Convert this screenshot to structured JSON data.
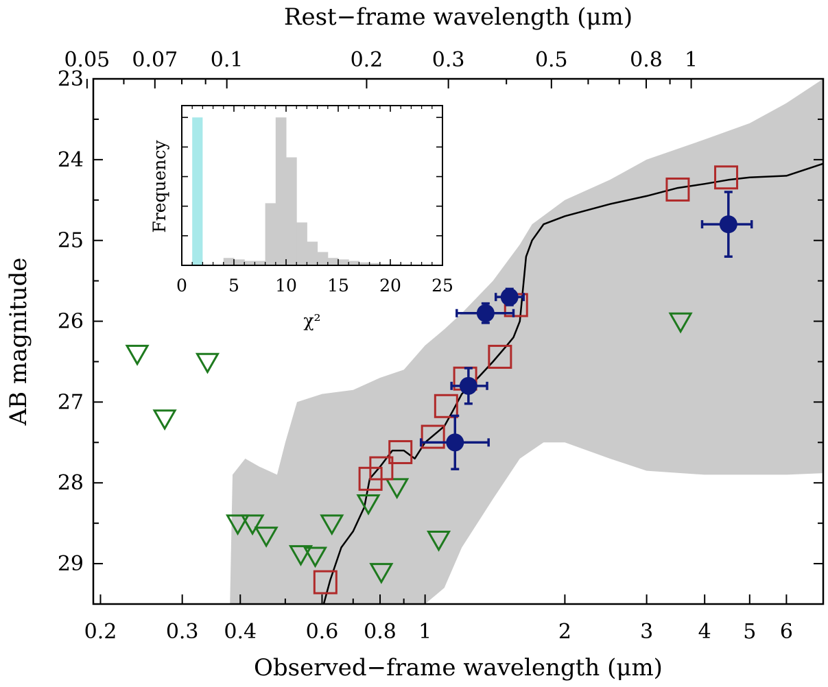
{
  "chart_data": {
    "type": "scatter",
    "x_axis": {
      "label": "Observed−frame wavelength (μm)",
      "scale": "log",
      "range": [
        0.193,
        7.2
      ],
      "ticks": [
        0.2,
        0.3,
        0.4,
        0.6,
        0.8,
        1,
        2,
        3,
        4,
        5,
        6
      ],
      "tick_labels": [
        "0.2",
        "0.3",
        "0.4",
        "0.6",
        "0.8",
        "1",
        "2",
        "3",
        "4",
        "5",
        "6"
      ],
      "minor_ticks": [
        0.5,
        0.7,
        0.9
      ]
    },
    "top_axis": {
      "label": "Rest−frame wavelength (μm)",
      "ticks": [
        0.05,
        0.07,
        0.1,
        0.2,
        0.3,
        0.5,
        0.8,
        1
      ],
      "tick_labels": [
        "0.05",
        "0.07",
        "0.1",
        "0.2",
        "0.3",
        "0.5",
        "0.8",
        "1"
      ],
      "minor_ticks": [
        0.06,
        0.08,
        0.09,
        0.4,
        0.6,
        0.7,
        0.9
      ]
    },
    "y_axis": {
      "label": "AB magnitude",
      "range": [
        29.5,
        23
      ],
      "inverted": true,
      "ticks": [
        23,
        24,
        25,
        26,
        27,
        28,
        29
      ],
      "tick_labels": [
        "23",
        "24",
        "25",
        "26",
        "27",
        "28",
        "29"
      ],
      "minor_step": 0.5
    },
    "colors": {
      "band": "#cbcbcb",
      "model": "#000000",
      "detections": "#0e1a7e",
      "model_photometry": "#b02a2a",
      "upper_limits": "#1e7a1e",
      "inset_best": "#a8e9ea",
      "inset_hist": "#cbcbcb"
    },
    "detections": [
      {
        "x": 1.35,
        "y": 25.9,
        "xerr": [
          1.17,
          1.55
        ],
        "yerr": 0.12
      },
      {
        "x": 1.52,
        "y": 25.7,
        "xerr": [
          1.42,
          1.63
        ],
        "yerr": 0.1
      },
      {
        "x": 1.24,
        "y": 26.8,
        "xerr": [
          1.14,
          1.36
        ],
        "yerr": 0.22
      },
      {
        "x": 1.16,
        "y": 27.5,
        "xerr": [
          0.98,
          1.37
        ],
        "yerr": 0.33
      },
      {
        "x": 4.5,
        "y": 24.8,
        "xerr": [
          3.95,
          5.05
        ],
        "yerr": 0.4
      }
    ],
    "model_photometry": [
      {
        "x": 0.61,
        "y": 29.23
      },
      {
        "x": 0.763,
        "y": 27.95
      },
      {
        "x": 0.805,
        "y": 27.82
      },
      {
        "x": 0.885,
        "y": 27.62
      },
      {
        "x": 1.04,
        "y": 27.43
      },
      {
        "x": 1.11,
        "y": 27.05
      },
      {
        "x": 1.22,
        "y": 26.71
      },
      {
        "x": 1.45,
        "y": 26.44
      },
      {
        "x": 1.57,
        "y": 25.8
      },
      {
        "x": 3.5,
        "y": 24.37
      },
      {
        "x": 4.45,
        "y": 24.22
      }
    ],
    "upper_limits": [
      {
        "x": 0.24,
        "y": 26.4
      },
      {
        "x": 0.275,
        "y": 27.2
      },
      {
        "x": 0.34,
        "y": 26.5
      },
      {
        "x": 0.395,
        "y": 28.5
      },
      {
        "x": 0.425,
        "y": 28.5
      },
      {
        "x": 0.455,
        "y": 28.65
      },
      {
        "x": 0.54,
        "y": 28.88
      },
      {
        "x": 0.58,
        "y": 28.9
      },
      {
        "x": 0.63,
        "y": 28.5
      },
      {
        "x": 0.755,
        "y": 28.25
      },
      {
        "x": 0.805,
        "y": 29.1
      },
      {
        "x": 0.87,
        "y": 28.05
      },
      {
        "x": 1.07,
        "y": 28.7
      },
      {
        "x": 3.55,
        "y": 26.0
      }
    ],
    "model_curve": [
      [
        0.605,
        29.5
      ],
      [
        0.625,
        29.2
      ],
      [
        0.66,
        28.8
      ],
      [
        0.7,
        28.6
      ],
      [
        0.74,
        28.3
      ],
      [
        0.76,
        27.95
      ],
      [
        0.8,
        27.8
      ],
      [
        0.85,
        27.6
      ],
      [
        0.9,
        27.6
      ],
      [
        0.95,
        27.7
      ],
      [
        1.0,
        27.5
      ],
      [
        1.1,
        27.3
      ],
      [
        1.15,
        27.1
      ],
      [
        1.2,
        26.9
      ],
      [
        1.3,
        26.7
      ],
      [
        1.4,
        26.5
      ],
      [
        1.5,
        26.3
      ],
      [
        1.55,
        26.2
      ],
      [
        1.6,
        26.0
      ],
      [
        1.65,
        25.2
      ],
      [
        1.7,
        25.0
      ],
      [
        1.8,
        24.8
      ],
      [
        2.0,
        24.7
      ],
      [
        2.5,
        24.55
      ],
      [
        3.0,
        24.45
      ],
      [
        3.5,
        24.35
      ],
      [
        4.0,
        24.3
      ],
      [
        4.5,
        24.25
      ],
      [
        5.0,
        24.22
      ],
      [
        6.0,
        24.2
      ],
      [
        7.2,
        24.05
      ]
    ],
    "band_upper": [
      [
        0.38,
        29.5
      ],
      [
        0.385,
        27.9
      ],
      [
        0.41,
        27.7
      ],
      [
        0.44,
        27.8
      ],
      [
        0.48,
        27.9
      ],
      [
        0.5,
        27.5
      ],
      [
        0.53,
        27.0
      ],
      [
        0.6,
        26.9
      ],
      [
        0.7,
        26.85
      ],
      [
        0.8,
        26.7
      ],
      [
        0.9,
        26.6
      ],
      [
        1.0,
        26.3
      ],
      [
        1.1,
        26.1
      ],
      [
        1.2,
        25.9
      ],
      [
        1.4,
        25.5
      ],
      [
        1.6,
        25.05
      ],
      [
        1.7,
        24.8
      ],
      [
        2.0,
        24.5
      ],
      [
        2.5,
        24.25
      ],
      [
        3.0,
        24.0
      ],
      [
        4.0,
        23.75
      ],
      [
        5.0,
        23.55
      ],
      [
        6.0,
        23.3
      ],
      [
        7.2,
        23.0
      ]
    ],
    "band_lower": [
      [
        0.625,
        29.5
      ],
      [
        0.65,
        29.5
      ],
      [
        0.8,
        29.5
      ],
      [
        1.0,
        29.5
      ],
      [
        1.1,
        29.3
      ],
      [
        1.2,
        28.8
      ],
      [
        1.4,
        28.2
      ],
      [
        1.6,
        27.7
      ],
      [
        1.8,
        27.5
      ],
      [
        2.0,
        27.5
      ],
      [
        2.5,
        27.7
      ],
      [
        3.0,
        27.85
      ],
      [
        4.0,
        27.9
      ],
      [
        5.0,
        27.9
      ],
      [
        6.0,
        27.9
      ],
      [
        7.2,
        27.88
      ]
    ],
    "inset": {
      "xlabel": "χ²",
      "ylabel": "Frequency",
      "x_range": [
        0,
        25
      ],
      "x_ticks": [
        0,
        5,
        10,
        15,
        20,
        25
      ],
      "x_tick_labels": [
        "0",
        "5",
        "10",
        "15",
        "20",
        "25"
      ],
      "y_range": [
        0,
        1.08
      ],
      "best_fit": {
        "x0": 1.0,
        "x1": 2.0,
        "height": 1.0
      },
      "histogram_bin_width": 1,
      "histogram": [
        [
          4,
          0.05
        ],
        [
          5,
          0.04
        ],
        [
          6,
          0.03
        ],
        [
          7,
          0.03
        ],
        [
          8,
          0.42
        ],
        [
          9,
          1.0
        ],
        [
          10,
          0.73
        ],
        [
          11,
          0.29
        ],
        [
          12,
          0.16
        ],
        [
          13,
          0.09
        ],
        [
          14,
          0.05
        ],
        [
          15,
          0.04
        ],
        [
          16,
          0.03
        ],
        [
          17,
          0.02
        ],
        [
          18,
          0.015
        ],
        [
          19,
          0.01
        ],
        [
          20,
          0.008
        ],
        [
          21,
          0.005
        ],
        [
          22,
          0.003
        ],
        [
          23,
          0.002
        ]
      ]
    }
  }
}
